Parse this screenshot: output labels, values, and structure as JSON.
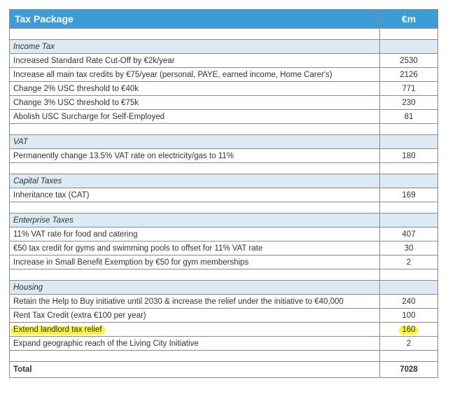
{
  "header": {
    "title": "Tax Package",
    "unit": "€m"
  },
  "sections": [
    {
      "name": "Income Tax",
      "items": [
        {
          "label": "Increased Standard Rate Cut-Off by €2k/year",
          "value": "2530"
        },
        {
          "label": "Increase all main tax credits by €75/year (personal, PAYE, earned income, Home Carer's)",
          "value": "2126"
        },
        {
          "label": "Change 2% USC threshold to €40k",
          "value": "771"
        },
        {
          "label": "Change 3% USC threshold to €75k",
          "value": "230"
        },
        {
          "label": "Abolish USC Surcharge for Self-Employed",
          "value": "81"
        }
      ]
    },
    {
      "name": "VAT",
      "items": [
        {
          "label": "Permanently change 13.5% VAT rate on electricity/gas to 11%",
          "value": "180"
        }
      ]
    },
    {
      "name": "Capital Taxes",
      "items": [
        {
          "label": "Inheritance tax (CAT)",
          "value": "169"
        }
      ]
    },
    {
      "name": "Enterprise Taxes",
      "items": [
        {
          "label": "11% VAT rate for food and catering",
          "value": "407"
        },
        {
          "label": "€50 tax credit for gyms and swimming pools to offset for 11% VAT rate",
          "value": "30"
        },
        {
          "label": "Increase in Small Benefit Exemption by €50 for gym memberships",
          "value": "2"
        }
      ]
    },
    {
      "name": "Housing",
      "items": [
        {
          "label": "Retain the Help to Buy initiative until 2030 & increase the relief under the initiative to €40,000",
          "value": "240"
        },
        {
          "label": "Rent Tax Credit (extra €100 per year)",
          "value": "100"
        },
        {
          "label": "Extend landlord tax relief",
          "value": "160",
          "highlight": true
        },
        {
          "label": "Expand geographic reach of the Living City Initiative",
          "value": "2"
        }
      ]
    }
  ],
  "total": {
    "label": "Total",
    "value": "7028"
  },
  "highlight_color": "#fff23a",
  "header_color": "#3d9cd8",
  "section_color": "#dceaf4"
}
